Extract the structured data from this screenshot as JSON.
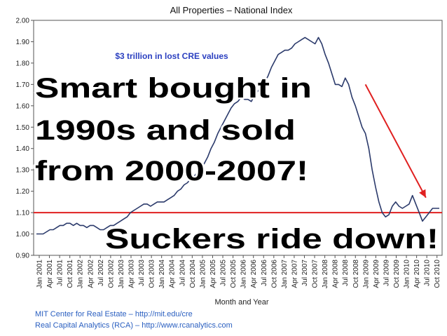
{
  "chart_data": {
    "type": "line",
    "title": "All Properties – National Index",
    "xlabel": "Month and Year",
    "ylabel": "",
    "ylim": [
      0.9,
      2.0
    ],
    "yticks": [
      "0.90",
      "1.00",
      "1.10",
      "1.20",
      "1.30",
      "1.40",
      "1.50",
      "1.60",
      "1.70",
      "1.80",
      "1.90",
      "2.00"
    ],
    "xticks": [
      "Jan 2001",
      "Apr 2001",
      "Jul 2001",
      "Oct 2001",
      "Jan 2002",
      "Apr 2002",
      "Jul 2002",
      "Oct 2002",
      "Jan 2003",
      "Apr 2003",
      "Jul 2003",
      "Oct 2003",
      "Jan 2004",
      "Apr 2004",
      "Jul 2004",
      "Oct 2004",
      "Jan 2005",
      "Apr 2005",
      "Jul 2005",
      "Oct 2005",
      "Jan 2006",
      "Apr 2006",
      "Jul 2006",
      "Oct 2006",
      "Jan 2007",
      "Apr 2007",
      "Jul 2007",
      "Oct 2007",
      "Jan 2008",
      "Apr 2008",
      "Jul 2008",
      "Oct 2008",
      "Jan 2009",
      "Apr 2009",
      "Jul 2009",
      "Oct 2009",
      "Jan 2010",
      "Apr 2010",
      "Jul 2010",
      "Oct 2010"
    ],
    "grid": false,
    "series": [
      {
        "color": "#2b3a6b",
        "values": [
          1.0,
          1.0,
          1.0,
          1.01,
          1.02,
          1.02,
          1.03,
          1.04,
          1.04,
          1.05,
          1.05,
          1.04,
          1.05,
          1.04,
          1.04,
          1.03,
          1.04,
          1.04,
          1.03,
          1.02,
          1.02,
          1.03,
          1.04,
          1.04,
          1.05,
          1.06,
          1.07,
          1.08,
          1.1,
          1.11,
          1.12,
          1.13,
          1.14,
          1.14,
          1.13,
          1.14,
          1.15,
          1.15,
          1.15,
          1.16,
          1.17,
          1.18,
          1.2,
          1.21,
          1.23,
          1.24,
          1.26,
          1.27,
          1.29,
          1.3,
          1.33,
          1.36,
          1.4,
          1.43,
          1.47,
          1.5,
          1.53,
          1.56,
          1.59,
          1.61,
          1.62,
          1.64,
          1.63,
          1.63,
          1.62,
          1.65,
          1.67,
          1.69,
          1.71,
          1.74,
          1.78,
          1.81,
          1.84,
          1.85,
          1.86,
          1.86,
          1.87,
          1.89,
          1.9,
          1.91,
          1.92,
          1.91,
          1.9,
          1.89,
          1.92,
          1.89,
          1.84,
          1.8,
          1.75,
          1.7,
          1.7,
          1.69,
          1.73,
          1.7,
          1.64,
          1.6,
          1.55,
          1.5,
          1.47,
          1.4,
          1.3,
          1.22,
          1.15,
          1.1,
          1.08,
          1.09,
          1.13,
          1.15,
          1.13,
          1.12,
          1.13,
          1.14,
          1.18,
          1.14,
          1.1,
          1.06,
          1.08,
          1.1,
          1.12,
          1.12,
          1.12
        ]
      }
    ],
    "reference_line": {
      "value": 1.1,
      "color": "#e02020"
    },
    "arrow": {
      "from": [
        98,
        1.7
      ],
      "to": [
        116,
        1.17
      ],
      "color": "#e02020"
    }
  },
  "annotations": {
    "note": "$3 trillion in lost CRE values",
    "overlay_line1": "Smart bought in",
    "overlay_line2": "1990s and sold",
    "overlay_line3": "from 2000-2007!",
    "bottom_text": "Suckers ride down!"
  },
  "sources": {
    "line1": "MIT Center for Real Estate – http://mit.edu/cre",
    "line2": "Real Capital Analytics (RCA) – http://www.rcanalytics.com"
  }
}
